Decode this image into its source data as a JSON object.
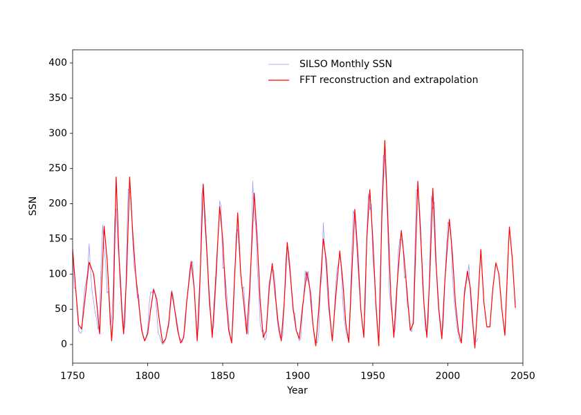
{
  "chart_data": {
    "type": "line",
    "xlabel": "Year",
    "ylabel": "SSN",
    "xlim": [
      1750,
      2050
    ],
    "xticks": [
      1750,
      1800,
      1850,
      1900,
      1950,
      2000,
      2050
    ],
    "ylim": [
      -26.5,
      418.7
    ],
    "yticks": [
      0,
      50,
      100,
      150,
      200,
      250,
      300,
      350,
      400
    ],
    "legend": "upper right",
    "series": [
      {
        "name": "SILSO Monthly SSN",
        "color": "#9999ff",
        "width": 0.8,
        "x": [
          1750,
          1751,
          1752,
          1753,
          1754,
          1755,
          1756,
          1757,
          1758,
          1759,
          1760,
          1761,
          1762,
          1763,
          1764,
          1765,
          1766,
          1767,
          1768,
          1769,
          1770,
          1771,
          1772,
          1773,
          1774,
          1775,
          1776,
          1777,
          1778,
          1779,
          1780,
          1781,
          1782,
          1783,
          1784,
          1785,
          1786,
          1787,
          1788,
          1789,
          1790,
          1791,
          1792,
          1793,
          1794,
          1795,
          1796,
          1797,
          1798,
          1799,
          1800,
          1801,
          1802,
          1803,
          1804,
          1805,
          1806,
          1807,
          1808,
          1809,
          1810,
          1811,
          1812,
          1813,
          1814,
          1815,
          1816,
          1817,
          1818,
          1819,
          1820,
          1821,
          1822,
          1823,
          1824,
          1825,
          1826,
          1827,
          1828,
          1829,
          1830,
          1831,
          1832,
          1833,
          1834,
          1835,
          1836,
          1837,
          1838,
          1839,
          1840,
          1841,
          1842,
          1843,
          1844,
          1845,
          1846,
          1847,
          1848,
          1849,
          1850,
          1851,
          1852,
          1853,
          1854,
          1855,
          1856,
          1857,
          1858,
          1859,
          1860,
          1861,
          1862,
          1863,
          1864,
          1865,
          1866,
          1867,
          1868,
          1869,
          1870,
          1871,
          1872,
          1873,
          1874,
          1875,
          1876,
          1877,
          1878,
          1879,
          1880,
          1881,
          1882,
          1883,
          1884,
          1885,
          1886,
          1887,
          1888,
          1889,
          1890,
          1891,
          1892,
          1893,
          1894,
          1895,
          1896,
          1897,
          1898,
          1899,
          1900,
          1901,
          1902,
          1903,
          1904,
          1905,
          1906,
          1907,
          1908,
          1909,
          1910,
          1911,
          1912,
          1913,
          1914,
          1915,
          1916,
          1917,
          1918,
          1919,
          1920,
          1921,
          1922,
          1923,
          1924,
          1925,
          1926,
          1927,
          1928,
          1929,
          1930,
          1931,
          1932,
          1933,
          1934,
          1935,
          1936,
          1937,
          1938,
          1939,
          1940,
          1941,
          1942,
          1943,
          1944,
          1945,
          1946,
          1947,
          1948,
          1949,
          1950,
          1951,
          1952,
          1953,
          1954,
          1955,
          1956,
          1957,
          1958,
          1959,
          1960,
          1961,
          1962,
          1963,
          1964,
          1965,
          1966,
          1967,
          1968,
          1969,
          1970,
          1971,
          1972,
          1973,
          1974,
          1975,
          1976,
          1977,
          1978,
          1979,
          1980,
          1981,
          1982,
          1983,
          1984,
          1985,
          1986,
          1987,
          1988,
          1989,
          1990,
          1991,
          1992,
          1993,
          1994,
          1995,
          1996,
          1997,
          1998,
          1999,
          2000,
          2001,
          2002,
          2003,
          2004,
          2005,
          2006,
          2007,
          2008,
          2009,
          2010,
          2011,
          2012,
          2013,
          2014,
          2015,
          2016,
          2017,
          2018,
          2019,
          2020
        ],
        "values": [
          139,
          80,
          80,
          51,
          20,
          16,
          17,
          54,
          79,
          90,
          104,
          143,
          102,
          75,
          61,
          45,
          36,
          21,
          45,
          116,
          170,
          137,
          116,
          73,
          76,
          28,
          35,
          77,
          179,
          193,
          143,
          122,
          94,
          50,
          21,
          26,
          140,
          221,
          218,
          209,
          149,
          108,
          101,
          66,
          71,
          35,
          27,
          10,
          6,
          11,
          23,
          57,
          75,
          73,
          80,
          70,
          47,
          16,
          12,
          4,
          0,
          2,
          8,
          20,
          24,
          59,
          77,
          69,
          50,
          39,
          27,
          11,
          7,
          3,
          14,
          26,
          60,
          82,
          107,
          114,
          118,
          78,
          46,
          14,
          23,
          90,
          212,
          227,
          170,
          143,
          105,
          58,
          40,
          18,
          25,
          66,
          103,
          158,
          204,
          196,
          108,
          110,
          90,
          65,
          35,
          12,
          7,
          37,
          96,
          157,
          164,
          133,
          102,
          79,
          82,
          52,
          27,
          14,
          63,
          125,
          232,
          185,
          170,
          109,
          73,
          29,
          18,
          21,
          6,
          10,
          54,
          90,
          98,
          107,
          105,
          87,
          42,
          22,
          11,
          10,
          12,
          59,
          120,
          143,
          131,
          108,
          70,
          45,
          45,
          20,
          16,
          5,
          8,
          40,
          70,
          105,
          90,
          104,
          80,
          72,
          32,
          10,
          6,
          2,
          16,
          79,
          95,
          173,
          134,
          105,
          63,
          43,
          24,
          10,
          29,
          74,
          106,
          114,
          130,
          109,
          60,
          35,
          19,
          9,
          15,
          60,
          132,
          190,
          182,
          149,
          112,
          80,
          51,
          27,
          16,
          55,
          155,
          214,
          191,
          199,
          121,
          98,
          55,
          23,
          7,
          55,
          202,
          269,
          262,
          225,
          159,
          76,
          53,
          40,
          15,
          22,
          67,
          133,
          150,
          149,
          148,
          94,
          98,
          54,
          49,
          22,
          18,
          39,
          131,
          220,
          219,
          199,
          162,
          91,
          61,
          21,
          15,
          34,
          123,
          211,
          192,
          203,
          133,
          76,
          45,
          25,
          12,
          29,
          88,
          136,
          174,
          170,
          163,
          99,
          65,
          46,
          25,
          13,
          4,
          5,
          25,
          81,
          84,
          94,
          114,
          70,
          40,
          22,
          7,
          4,
          9
        ]
      },
      {
        "name": "FFT reconstruction and extrapolation",
        "color": "#ff0000",
        "width": 1.2,
        "x": [
          1750,
          1752,
          1754,
          1756,
          1758,
          1761,
          1764,
          1766,
          1768,
          1771,
          1773,
          1775,
          1776,
          1777,
          1779,
          1781,
          1783,
          1784,
          1786,
          1788,
          1790,
          1792,
          1794,
          1796,
          1798,
          1800,
          1802,
          1804,
          1806,
          1808,
          1810,
          1812,
          1814,
          1816,
          1818,
          1820,
          1822,
          1824,
          1826,
          1829,
          1831,
          1833,
          1835,
          1837,
          1839,
          1841,
          1843,
          1845,
          1848,
          1850,
          1852,
          1854,
          1856,
          1858,
          1860,
          1862,
          1864,
          1866,
          1868,
          1871,
          1873,
          1875,
          1877,
          1879,
          1881,
          1883,
          1885,
          1887,
          1889,
          1891,
          1893,
          1895,
          1897,
          1899,
          1901,
          1903,
          1906,
          1908,
          1910,
          1912,
          1914,
          1917,
          1919,
          1921,
          1923,
          1925,
          1928,
          1930,
          1932,
          1934,
          1936,
          1938,
          1940,
          1942,
          1944,
          1946,
          1948,
          1950,
          1952,
          1954,
          1956,
          1958,
          1960,
          1962,
          1964,
          1966,
          1969,
          1971,
          1973,
          1975,
          1977,
          1980,
          1982,
          1984,
          1986,
          1988,
          1990,
          1992,
          1994,
          1996,
          1998,
          2001,
          2003,
          2005,
          2007,
          2009,
          2011,
          2013,
          2015,
          2017,
          2018,
          2020,
          2022,
          2024,
          2026,
          2028,
          2030,
          2032,
          2034,
          2036,
          2038,
          2040,
          2041,
          2043,
          2045
        ],
        "values": [
          135,
          80,
          28,
          22,
          60,
          117,
          100,
          60,
          15,
          168,
          120,
          40,
          5,
          40,
          238,
          120,
          40,
          15,
          100,
          238,
          160,
          100,
          60,
          20,
          5,
          15,
          50,
          78,
          65,
          30,
          2,
          8,
          30,
          75,
          50,
          20,
          2,
          10,
          60,
          118,
          80,
          5,
          100,
          228,
          150,
          70,
          10,
          80,
          196,
          150,
          70,
          20,
          2,
          100,
          187,
          100,
          60,
          15,
          80,
          215,
          150,
          60,
          10,
          20,
          80,
          115,
          70,
          30,
          5,
          60,
          145,
          100,
          50,
          20,
          8,
          50,
          103,
          80,
          30,
          -2,
          50,
          150,
          120,
          50,
          5,
          60,
          133,
          90,
          30,
          3,
          100,
          192,
          130,
          50,
          10,
          150,
          220,
          150,
          60,
          -2,
          180,
          290,
          180,
          70,
          10,
          80,
          162,
          120,
          70,
          20,
          30,
          232,
          150,
          60,
          10,
          100,
          222,
          120,
          50,
          8,
          90,
          178,
          130,
          60,
          20,
          2,
          70,
          104,
          80,
          20,
          -5,
          60,
          135,
          60,
          25,
          25,
          80,
          116,
          100,
          50,
          13,
          120,
          167,
          120,
          52
        ]
      }
    ]
  }
}
